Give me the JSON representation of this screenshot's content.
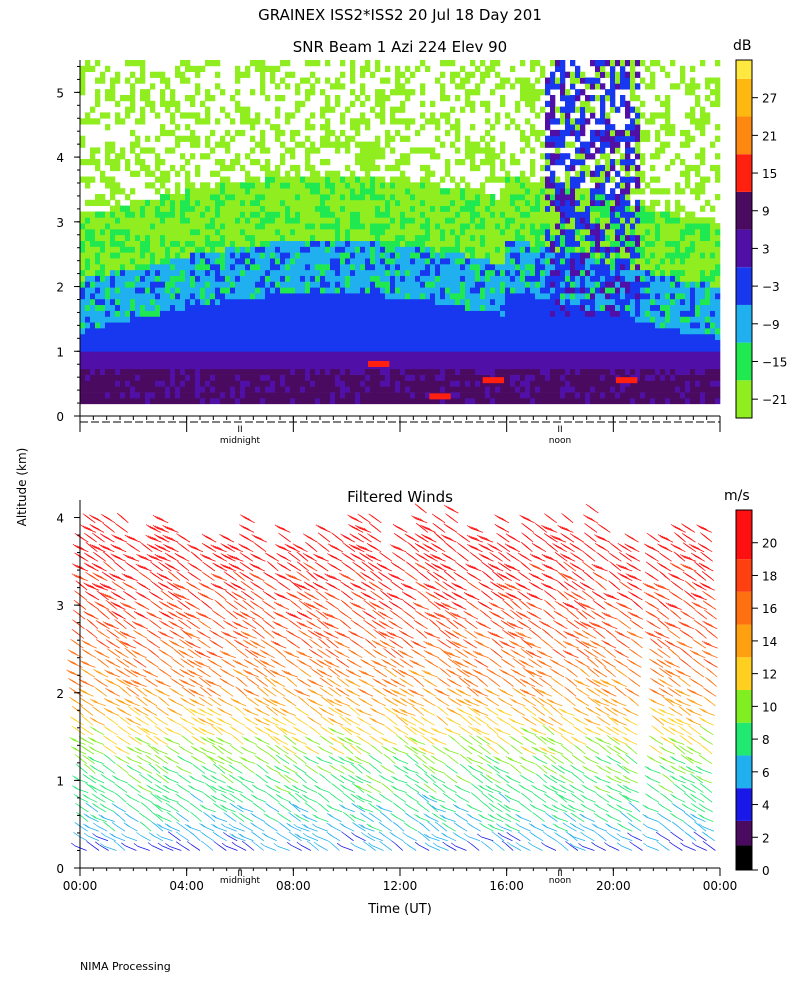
{
  "header": {
    "title": "GRAINEX ISS2*ISS2  20 Jul 18 Day 201",
    "ylabel": "Altitude (km)",
    "xlabel": "Time (UT)",
    "footer": "NIMA Processing"
  },
  "markers": {
    "midnight": "midnight",
    "noon": "noon",
    "marker_glyph": "II"
  },
  "chart_data": [
    {
      "type": "heatmap",
      "title": "SNR Beam 1 Azi 224 Elev 90",
      "ylabel": "Altitude (km)",
      "ylim": [
        0,
        5.5
      ],
      "yticks": [
        0,
        1,
        2,
        3,
        4,
        5
      ],
      "x_range_hours": [
        0,
        24
      ],
      "colorbar": {
        "unit": "dB",
        "range": [
          -24,
          33
        ],
        "ticks": [
          -21,
          -15,
          -9,
          -3,
          3,
          9,
          15,
          21,
          27
        ],
        "bins": [
          {
            "min": -24,
            "max": -18,
            "color": "#90ee20"
          },
          {
            "min": -18,
            "max": -12,
            "color": "#20e850"
          },
          {
            "min": -12,
            "max": -6,
            "color": "#20b0f0"
          },
          {
            "min": -6,
            "max": 0,
            "color": "#1838f0"
          },
          {
            "min": 0,
            "max": 6,
            "color": "#5010a8"
          },
          {
            "min": 6,
            "max": 12,
            "color": "#4a0a60"
          },
          {
            "min": 12,
            "max": 18,
            "color": "#ff2010"
          },
          {
            "min": 18,
            "max": 24,
            "color": "#ff8810"
          },
          {
            "min": 24,
            "max": 30,
            "color": "#ffb810"
          },
          {
            "min": 30,
            "max": 33,
            "color": "#ffe840"
          }
        ]
      },
      "local_markers_hours": {
        "midnight": 6,
        "noon": 18
      }
    },
    {
      "type": "wind_barbs",
      "title": "Filtered Winds",
      "ylabel": "Altitude (km)",
      "ylim": [
        0,
        4.2
      ],
      "yticks": [
        0,
        1,
        2,
        3,
        4
      ],
      "xlim": [
        0,
        24
      ],
      "xticks": [
        "00:00",
        "04:00",
        "08:00",
        "12:00",
        "16:00",
        "20:00",
        "00:00"
      ],
      "xlabel": "Time (UT)",
      "colorbar": {
        "unit": "m/s",
        "range": [
          0,
          22
        ],
        "ticks": [
          0,
          2,
          4,
          6,
          8,
          10,
          12,
          14,
          16,
          18,
          20
        ],
        "bins": [
          {
            "min": 0,
            "max": 1.5,
            "color": "#000000"
          },
          {
            "min": 1.5,
            "max": 3,
            "color": "#4a0a60"
          },
          {
            "min": 3,
            "max": 5,
            "color": "#1818e8"
          },
          {
            "min": 5,
            "max": 7,
            "color": "#20b0f0"
          },
          {
            "min": 7,
            "max": 9,
            "color": "#20e870"
          },
          {
            "min": 9,
            "max": 11,
            "color": "#80ee20"
          },
          {
            "min": 11,
            "max": 13,
            "color": "#ffd020"
          },
          {
            "min": 13,
            "max": 15,
            "color": "#ffa010"
          },
          {
            "min": 15,
            "max": 17,
            "color": "#ff7010"
          },
          {
            "min": 17,
            "max": 19,
            "color": "#ff4010"
          },
          {
            "min": 19,
            "max": 22,
            "color": "#ff1010"
          }
        ]
      },
      "speed_profile": {
        "altitude_km": [
          0.2,
          0.5,
          0.8,
          1.1,
          1.4,
          1.7,
          2.0,
          2.5,
          3.0,
          3.5,
          4.0
        ],
        "speed_ms": [
          5,
          7,
          8,
          9,
          11,
          13,
          15,
          17,
          19,
          20,
          20
        ]
      },
      "direction_from_deg": 225,
      "local_markers_hours": {
        "midnight": 6,
        "noon": 18
      }
    }
  ]
}
